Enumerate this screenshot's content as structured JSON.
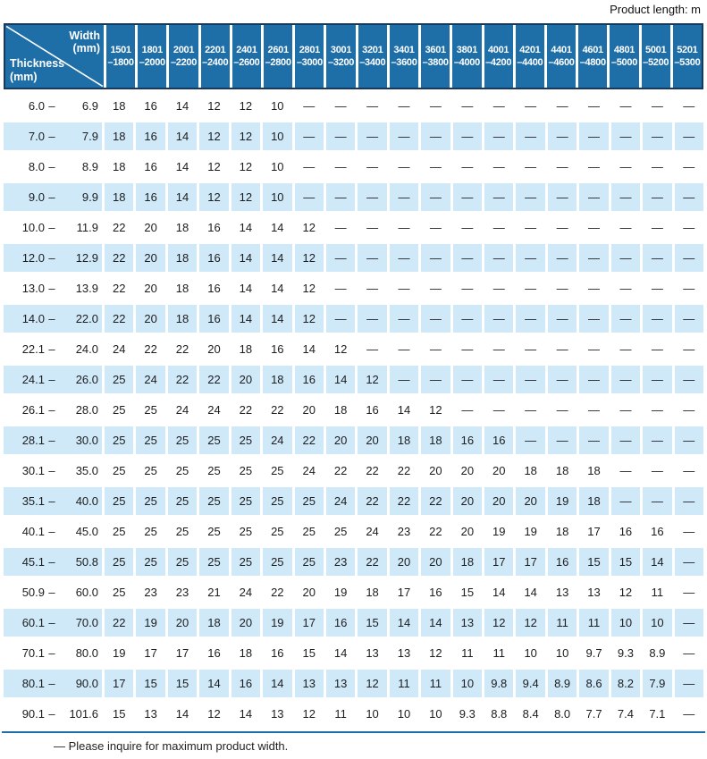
{
  "page": {
    "unit_note": "Product length: m",
    "footnote": "— Please inquire for maximum product width."
  },
  "colors": {
    "header_blue": "#1e6ea8",
    "row_blue": "#cfe9f8",
    "border_navy": "#16395c",
    "rule_blue": "#1e6ea8"
  },
  "table": {
    "corner": {
      "width_line1": "Width",
      "width_line2": "(mm)",
      "thickness_line1": "Thickness",
      "thickness_line2": "(mm)"
    },
    "width_columns": [
      {
        "line1": "1501",
        "line2": "–1800"
      },
      {
        "line1": "1801",
        "line2": "–2000"
      },
      {
        "line1": "2001",
        "line2": "–2200"
      },
      {
        "line1": "2201",
        "line2": "–2400"
      },
      {
        "line1": "2401",
        "line2": "–2600"
      },
      {
        "line1": "2601",
        "line2": "–2800"
      },
      {
        "line1": "2801",
        "line2": "–3000"
      },
      {
        "line1": "3001",
        "line2": "–3200"
      },
      {
        "line1": "3201",
        "line2": "–3400"
      },
      {
        "line1": "3401",
        "line2": "–3600"
      },
      {
        "line1": "3601",
        "line2": "–3800"
      },
      {
        "line1": "3801",
        "line2": "–4000"
      },
      {
        "line1": "4001",
        "line2": "–4200"
      },
      {
        "line1": "4201",
        "line2": "–4400"
      },
      {
        "line1": "4401",
        "line2": "–4600"
      },
      {
        "line1": "4601",
        "line2": "–4800"
      },
      {
        "line1": "4801",
        "line2": "–5000"
      },
      {
        "line1": "5001",
        "line2": "–5200"
      },
      {
        "line1": "5201",
        "line2": "–5300"
      }
    ],
    "rows": [
      {
        "min": "6.0",
        "sep": "–",
        "max": "6.9",
        "values": [
          "18",
          "16",
          "14",
          "12",
          "12",
          "10",
          "—",
          "—",
          "—",
          "—",
          "—",
          "—",
          "—",
          "—",
          "—",
          "—",
          "—",
          "—",
          "—"
        ]
      },
      {
        "min": "7.0",
        "sep": "–",
        "max": "7.9",
        "values": [
          "18",
          "16",
          "14",
          "12",
          "12",
          "10",
          "—",
          "—",
          "—",
          "—",
          "—",
          "—",
          "—",
          "—",
          "—",
          "—",
          "—",
          "—",
          "—"
        ]
      },
      {
        "min": "8.0",
        "sep": "–",
        "max": "8.9",
        "values": [
          "18",
          "16",
          "14",
          "12",
          "12",
          "10",
          "—",
          "—",
          "—",
          "—",
          "—",
          "—",
          "—",
          "—",
          "—",
          "—",
          "—",
          "—",
          "—"
        ]
      },
      {
        "min": "9.0",
        "sep": "–",
        "max": "9.9",
        "values": [
          "18",
          "16",
          "14",
          "12",
          "12",
          "10",
          "—",
          "—",
          "—",
          "—",
          "—",
          "—",
          "—",
          "—",
          "—",
          "—",
          "—",
          "—",
          "—"
        ]
      },
      {
        "min": "10.0",
        "sep": "–",
        "max": "11.9",
        "values": [
          "22",
          "20",
          "18",
          "16",
          "14",
          "14",
          "12",
          "—",
          "—",
          "—",
          "—",
          "—",
          "—",
          "—",
          "—",
          "—",
          "—",
          "—",
          "—"
        ]
      },
      {
        "min": "12.0",
        "sep": "–",
        "max": "12.9",
        "values": [
          "22",
          "20",
          "18",
          "16",
          "14",
          "14",
          "12",
          "—",
          "—",
          "—",
          "—",
          "—",
          "—",
          "—",
          "—",
          "—",
          "—",
          "—",
          "—"
        ]
      },
      {
        "min": "13.0",
        "sep": "–",
        "max": "13.9",
        "values": [
          "22",
          "20",
          "18",
          "16",
          "14",
          "14",
          "12",
          "—",
          "—",
          "—",
          "—",
          "—",
          "—",
          "—",
          "—",
          "—",
          "—",
          "—",
          "—"
        ]
      },
      {
        "min": "14.0",
        "sep": "–",
        "max": "22.0",
        "values": [
          "22",
          "20",
          "18",
          "16",
          "14",
          "14",
          "12",
          "—",
          "—",
          "—",
          "—",
          "—",
          "—",
          "—",
          "—",
          "—",
          "—",
          "—",
          "—"
        ]
      },
      {
        "min": "22.1",
        "sep": "–",
        "max": "24.0",
        "values": [
          "24",
          "22",
          "22",
          "20",
          "18",
          "16",
          "14",
          "12",
          "—",
          "—",
          "—",
          "—",
          "—",
          "—",
          "—",
          "—",
          "—",
          "—",
          "—"
        ]
      },
      {
        "min": "24.1",
        "sep": "–",
        "max": "26.0",
        "values": [
          "25",
          "24",
          "22",
          "22",
          "20",
          "18",
          "16",
          "14",
          "12",
          "—",
          "—",
          "—",
          "—",
          "—",
          "—",
          "—",
          "—",
          "—",
          "—"
        ]
      },
      {
        "min": "26.1",
        "sep": "–",
        "max": "28.0",
        "values": [
          "25",
          "25",
          "24",
          "24",
          "22",
          "22",
          "20",
          "18",
          "16",
          "14",
          "12",
          "—",
          "—",
          "—",
          "—",
          "—",
          "—",
          "—",
          "—"
        ]
      },
      {
        "min": "28.1",
        "sep": "–",
        "max": "30.0",
        "values": [
          "25",
          "25",
          "25",
          "25",
          "25",
          "24",
          "22",
          "20",
          "20",
          "18",
          "18",
          "16",
          "16",
          "—",
          "—",
          "—",
          "—",
          "—",
          "—"
        ]
      },
      {
        "min": "30.1",
        "sep": "–",
        "max": "35.0",
        "values": [
          "25",
          "25",
          "25",
          "25",
          "25",
          "25",
          "24",
          "22",
          "22",
          "22",
          "20",
          "20",
          "20",
          "18",
          "18",
          "18",
          "—",
          "—",
          "—"
        ]
      },
      {
        "min": "35.1",
        "sep": "–",
        "max": "40.0",
        "values": [
          "25",
          "25",
          "25",
          "25",
          "25",
          "25",
          "25",
          "24",
          "22",
          "22",
          "22",
          "20",
          "20",
          "20",
          "19",
          "18",
          "—",
          "—",
          "—"
        ]
      },
      {
        "min": "40.1",
        "sep": "–",
        "max": "45.0",
        "values": [
          "25",
          "25",
          "25",
          "25",
          "25",
          "25",
          "25",
          "25",
          "24",
          "23",
          "22",
          "20",
          "19",
          "19",
          "18",
          "17",
          "16",
          "16",
          "—"
        ]
      },
      {
        "min": "45.1",
        "sep": "–",
        "max": "50.8",
        "values": [
          "25",
          "25",
          "25",
          "25",
          "25",
          "25",
          "25",
          "23",
          "22",
          "20",
          "20",
          "18",
          "17",
          "17",
          "16",
          "15",
          "15",
          "14",
          "—"
        ]
      },
      {
        "min": "50.9",
        "sep": "–",
        "max": "60.0",
        "values": [
          "25",
          "23",
          "23",
          "21",
          "24",
          "22",
          "20",
          "19",
          "18",
          "17",
          "16",
          "15",
          "14",
          "14",
          "13",
          "13",
          "12",
          "11",
          "—"
        ]
      },
      {
        "min": "60.1",
        "sep": "–",
        "max": "70.0",
        "values": [
          "22",
          "19",
          "20",
          "18",
          "20",
          "19",
          "17",
          "16",
          "15",
          "14",
          "14",
          "13",
          "12",
          "12",
          "11",
          "11",
          "10",
          "10",
          "—"
        ]
      },
      {
        "min": "70.1",
        "sep": "–",
        "max": "80.0",
        "values": [
          "19",
          "17",
          "17",
          "16",
          "18",
          "16",
          "15",
          "14",
          "13",
          "13",
          "12",
          "11",
          "11",
          "10",
          "10",
          "9.7",
          "9.3",
          "8.9",
          "—"
        ]
      },
      {
        "min": "80.1",
        "sep": "–",
        "max": "90.0",
        "values": [
          "17",
          "15",
          "15",
          "14",
          "16",
          "14",
          "13",
          "13",
          "12",
          "11",
          "11",
          "10",
          "9.8",
          "9.4",
          "8.9",
          "8.6",
          "8.2",
          "7.9",
          "—"
        ]
      },
      {
        "min": "90.1",
        "sep": "–",
        "max": "101.6",
        "values": [
          "15",
          "13",
          "14",
          "12",
          "14",
          "13",
          "12",
          "11",
          "10",
          "10",
          "10",
          "9.3",
          "8.8",
          "8.4",
          "8.0",
          "7.7",
          "7.4",
          "7.1",
          "—"
        ]
      }
    ]
  }
}
